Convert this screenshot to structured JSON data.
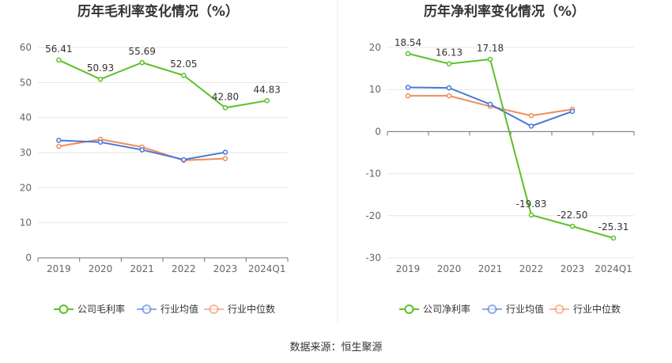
{
  "source": "数据来源：恒生聚源",
  "chart_data": [
    {
      "type": "line",
      "title": "历年毛利率变化情况（%）",
      "categories": [
        "2019",
        "2020",
        "2021",
        "2022",
        "2023",
        "2024Q1"
      ],
      "ylim": [
        0,
        60
      ],
      "yticks": [
        0,
        10,
        20,
        30,
        40,
        50,
        60
      ],
      "grid": true,
      "legend_position": "bottom",
      "series": [
        {
          "name": "公司毛利率",
          "color": "#5cc12a",
          "values": [
            56.41,
            50.93,
            55.69,
            52.05,
            42.8,
            44.83
          ],
          "labels": [
            "56.41",
            "50.93",
            "55.69",
            "52.05",
            "42.80",
            "44.83"
          ]
        },
        {
          "name": "行业均值",
          "color": "#4a78d8",
          "values": [
            33.5,
            33.0,
            30.8,
            28.0,
            30.1,
            null
          ]
        },
        {
          "name": "行业中位数",
          "color": "#f08c5a",
          "values": [
            31.8,
            33.8,
            31.6,
            27.8,
            28.3,
            null
          ]
        }
      ]
    },
    {
      "type": "line",
      "title": "历年净利率变化情况（%）",
      "categories": [
        "2019",
        "2020",
        "2021",
        "2022",
        "2023",
        "2024Q1"
      ],
      "ylim": [
        -30,
        20
      ],
      "yticks": [
        -30,
        -20,
        -10,
        0,
        10,
        20
      ],
      "grid": true,
      "legend_position": "bottom",
      "series": [
        {
          "name": "公司净利率",
          "color": "#5cc12a",
          "values": [
            18.54,
            16.13,
            17.18,
            -19.83,
            -22.5,
            -25.31
          ],
          "labels": [
            "18.54",
            "16.13",
            "17.18",
            "-19.83",
            "-22.50",
            "-25.31"
          ]
        },
        {
          "name": "行业均值",
          "color": "#4a78d8",
          "values": [
            10.5,
            10.4,
            6.5,
            1.3,
            4.8,
            null
          ]
        },
        {
          "name": "行业中位数",
          "color": "#f08c5a",
          "values": [
            8.5,
            8.5,
            6.0,
            3.8,
            5.3,
            null
          ]
        }
      ]
    }
  ]
}
